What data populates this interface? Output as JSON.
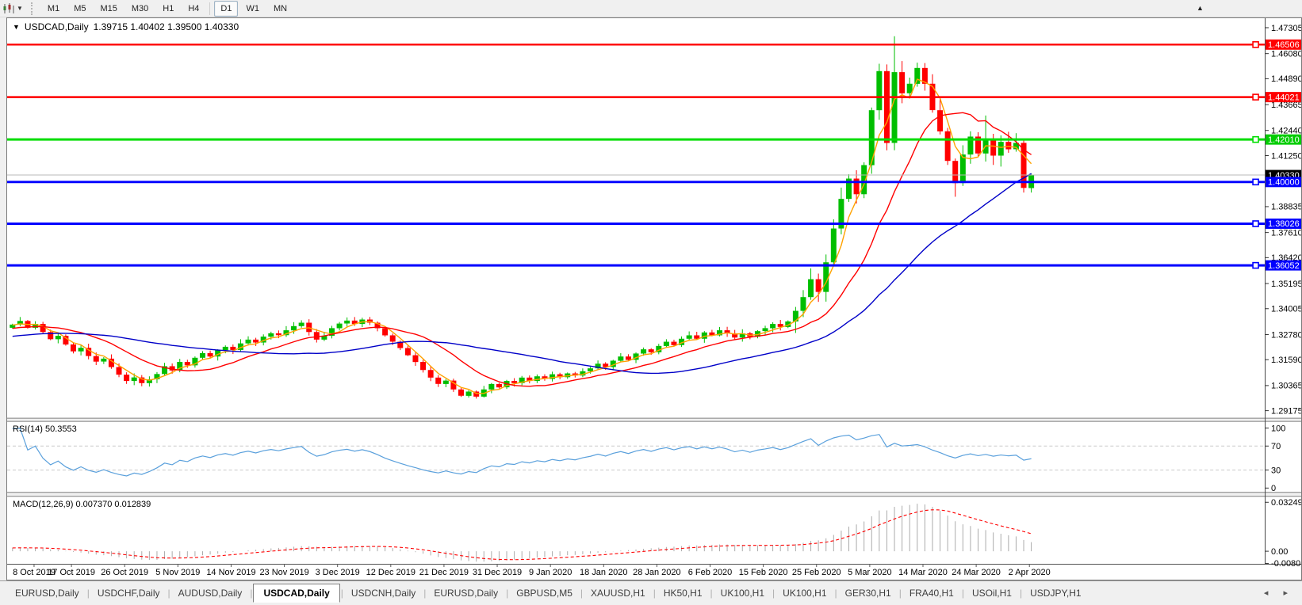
{
  "icons": {
    "caret_down": "▼",
    "title_marker": "▼",
    "scroll_marker": "▲",
    "tab_prev": "◂",
    "tab_next": "▸"
  },
  "toolbar": {
    "timeframes": [
      {
        "label": "M1",
        "active": false
      },
      {
        "label": "M5",
        "active": false
      },
      {
        "label": "M15",
        "active": false
      },
      {
        "label": "M30",
        "active": false
      },
      {
        "label": "H1",
        "active": false
      },
      {
        "label": "H4",
        "active": false
      },
      {
        "label": "D1",
        "active": true
      },
      {
        "label": "W1",
        "active": false
      },
      {
        "label": "MN",
        "active": false
      }
    ]
  },
  "window_title": {
    "symbol": "USDCAD,Daily",
    "ohlc": "1.39715 1.40402 1.39500 1.40330"
  },
  "price_axis": {
    "ticks": [
      {
        "label": "1.47305",
        "value": 1.47305
      },
      {
        "label": "1.46080",
        "value": 1.4608
      },
      {
        "label": "1.44890",
        "value": 1.4489
      },
      {
        "label": "1.43665",
        "value": 1.43665
      },
      {
        "label": "1.42440",
        "value": 1.4244
      },
      {
        "label": "1.41250",
        "value": 1.4125
      },
      {
        "label": "1.38835",
        "value": 1.38835
      },
      {
        "label": "1.37610",
        "value": 1.3761
      },
      {
        "label": "1.36420",
        "value": 1.3642
      },
      {
        "label": "1.35195",
        "value": 1.35195
      },
      {
        "label": "1.34005",
        "value": 1.34005
      },
      {
        "label": "1.32780",
        "value": 1.3278
      },
      {
        "label": "1.31590",
        "value": 1.3159
      },
      {
        "label": "1.30365",
        "value": 1.30365
      },
      {
        "label": "1.29175",
        "value": 1.29175
      }
    ],
    "badges": [
      {
        "label": "1.46506",
        "value": 1.46506,
        "color": "#ff0000"
      },
      {
        "label": "1.44021",
        "value": 1.44021,
        "color": "#ff0000"
      },
      {
        "label": "1.42010",
        "value": 1.4201,
        "color": "#00cc00"
      },
      {
        "label": "1.40330",
        "value": 1.4033,
        "color": "#000000"
      },
      {
        "label": "1.40000",
        "value": 1.4,
        "color": "#0000ff"
      },
      {
        "label": "1.38026",
        "value": 1.38026,
        "color": "#0000ff"
      },
      {
        "label": "1.36052",
        "value": 1.36052,
        "color": "#0000ff"
      }
    ]
  },
  "horizontal_lines": [
    {
      "label": "1.46506",
      "price": 1.46506,
      "color": "#ff0000",
      "width": 2.4
    },
    {
      "label": "1.44021",
      "price": 1.44021,
      "color": "#ff0000",
      "width": 2.4
    },
    {
      "label": "1.42010",
      "price": 1.4201,
      "color": "#00dd00",
      "width": 3
    },
    {
      "label": "1.40000",
      "price": 1.4,
      "color": "#0000ff",
      "width": 3
    },
    {
      "label": "1.38026",
      "price": 1.38026,
      "color": "#0000ff",
      "width": 3
    },
    {
      "label": "1.36052",
      "price": 1.36052,
      "color": "#0000ff",
      "width": 3
    }
  ],
  "current_price": {
    "label": "1.40330",
    "value": 1.4033
  },
  "indicator_panes": {
    "rsi": {
      "label": "RSI(14) 50.3553",
      "value": 50.3553,
      "levels": [
        {
          "label": "100",
          "value": 100
        },
        {
          "label": "70",
          "value": 70
        },
        {
          "label": "30",
          "value": 30
        },
        {
          "label": "0",
          "value": 0
        }
      ],
      "dashed_levels": [
        70,
        30
      ]
    },
    "macd": {
      "label": "MACD(12,26,9) 0.007370 0.012839",
      "macd_value": 0.00737,
      "signal_value": 0.012839,
      "axis": [
        {
          "label": "0.032493",
          "value": 0.032493
        },
        {
          "label": "0.00",
          "value": 0
        },
        {
          "label": "-0.008086",
          "value": -0.008086
        }
      ]
    }
  },
  "date_axis": [
    "8 Oct 2019",
    "17 Oct 2019",
    "26 Oct 2019",
    "5 Nov 2019",
    "14 Nov 2019",
    "23 Nov 2019",
    "3 Dec 2019",
    "12 Dec 2019",
    "21 Dec 2019",
    "31 Dec 2019",
    "9 Jan 2020",
    "18 Jan 2020",
    "28 Jan 2020",
    "6 Feb 2020",
    "15 Feb 2020",
    "25 Feb 2020",
    "5 Mar 2020",
    "14 Mar 2020",
    "24 Mar 2020",
    "2 Apr 2020"
  ],
  "tabs": [
    {
      "label": "EURUSD,Daily",
      "active": false
    },
    {
      "label": "USDCHF,Daily",
      "active": false
    },
    {
      "label": "AUDUSD,Daily",
      "active": false
    },
    {
      "label": "USDCAD,Daily",
      "active": true
    },
    {
      "label": "USDCNH,Daily",
      "active": false
    },
    {
      "label": "EURUSD,Daily",
      "active": false
    },
    {
      "label": "GBPUSD,M5",
      "active": false
    },
    {
      "label": "XAUUSD,H1",
      "active": false
    },
    {
      "label": "HK50,H1",
      "active": false
    },
    {
      "label": "UK100,H1",
      "active": false
    },
    {
      "label": "UK100,H1",
      "active": false
    },
    {
      "label": "GER30,H1",
      "active": false
    },
    {
      "label": "FRA40,H1",
      "active": false
    },
    {
      "label": "USOil,H1",
      "active": false
    },
    {
      "label": "USDJPY,H1",
      "active": false
    }
  ],
  "chart_data": {
    "type": "candlestick",
    "symbol": "USDCAD",
    "timeframe": "Daily",
    "visible_price_range": [
      1.2884,
      1.4776
    ],
    "current_bar_ohlc": {
      "open": 1.39715,
      "high": 1.40402,
      "low": 1.395,
      "close": 1.4033
    },
    "first_open": 1.331,
    "closes": [
      1.3325,
      1.3342,
      1.331,
      1.3328,
      1.329,
      1.3256,
      1.3272,
      1.3231,
      1.3198,
      1.3215,
      1.3176,
      1.315,
      1.3164,
      1.3124,
      1.3088,
      1.3058,
      1.3075,
      1.3048,
      1.3066,
      1.3091,
      1.3128,
      1.3108,
      1.3148,
      1.3132,
      1.3168,
      1.319,
      1.3174,
      1.3204,
      1.322,
      1.3205,
      1.3236,
      1.3254,
      1.324,
      1.3268,
      1.3284,
      1.3275,
      1.3298,
      1.3318,
      1.3334,
      1.329,
      1.3254,
      1.3272,
      1.3308,
      1.333,
      1.3344,
      1.3328,
      1.3349,
      1.3334,
      1.3308,
      1.3274,
      1.3244,
      1.3214,
      1.318,
      1.3148,
      1.311,
      1.3074,
      1.3044,
      1.306,
      1.3018,
      1.2988,
      1.3008,
      1.2984,
      1.3018,
      1.3044,
      1.3028,
      1.3058,
      1.3048,
      1.3074,
      1.3058,
      1.308,
      1.3068,
      1.309,
      1.3076,
      1.3094,
      1.3084,
      1.3104,
      1.3118,
      1.314,
      1.3124,
      1.3154,
      1.3174,
      1.3158,
      1.3188,
      1.3208,
      1.3194,
      1.3224,
      1.3244,
      1.3228,
      1.3258,
      1.3274,
      1.3258,
      1.3288,
      1.3274,
      1.3298,
      1.3284,
      1.3264,
      1.3284,
      1.3268,
      1.3294,
      1.3308,
      1.3328,
      1.3314,
      1.334,
      1.339,
      1.3455,
      1.354,
      1.348,
      1.362,
      1.378,
      1.392,
      1.4016,
      1.3942,
      1.408,
      1.434,
      1.4525,
      1.4185,
      1.452,
      1.442,
      1.4465,
      1.454,
      1.4465,
      1.434,
      1.424,
      1.41,
      1.3995,
      1.413,
      1.4215,
      1.4135,
      1.4205,
      1.4125,
      1.419,
      1.4155,
      1.4185,
      1.3972,
      1.4033
    ],
    "overrides": {
      "114": {
        "h": 1.456
      },
      "115": {
        "l": 1.415
      },
      "116": {
        "h": 1.469
      },
      "119": {
        "h": 1.4565
      },
      "124": {
        "l": 1.393
      },
      "128": {
        "h": 1.4315
      },
      "133": {
        "l": 1.395
      },
      "134": {
        "o": 1.39715,
        "h": 1.40402,
        "l": 1.395,
        "c": 1.4033
      }
    },
    "moving_averages": [
      {
        "period": 4,
        "color": "#ffa200"
      },
      {
        "period": 13,
        "color": "#ff0000"
      },
      {
        "period": 34,
        "color": "#0000c8"
      }
    ],
    "rsi_period": 14,
    "macd_params": [
      12,
      26,
      9
    ],
    "colors": {
      "up_candle": "#00be00",
      "down_candle": "#ff0000",
      "rsi_line": "#5aa0dc",
      "macd_histogram": "#ababab",
      "macd_signal": "#ff0000",
      "price_line": "#b8b8b8",
      "rsi_dash": "#c9c9c9"
    }
  }
}
